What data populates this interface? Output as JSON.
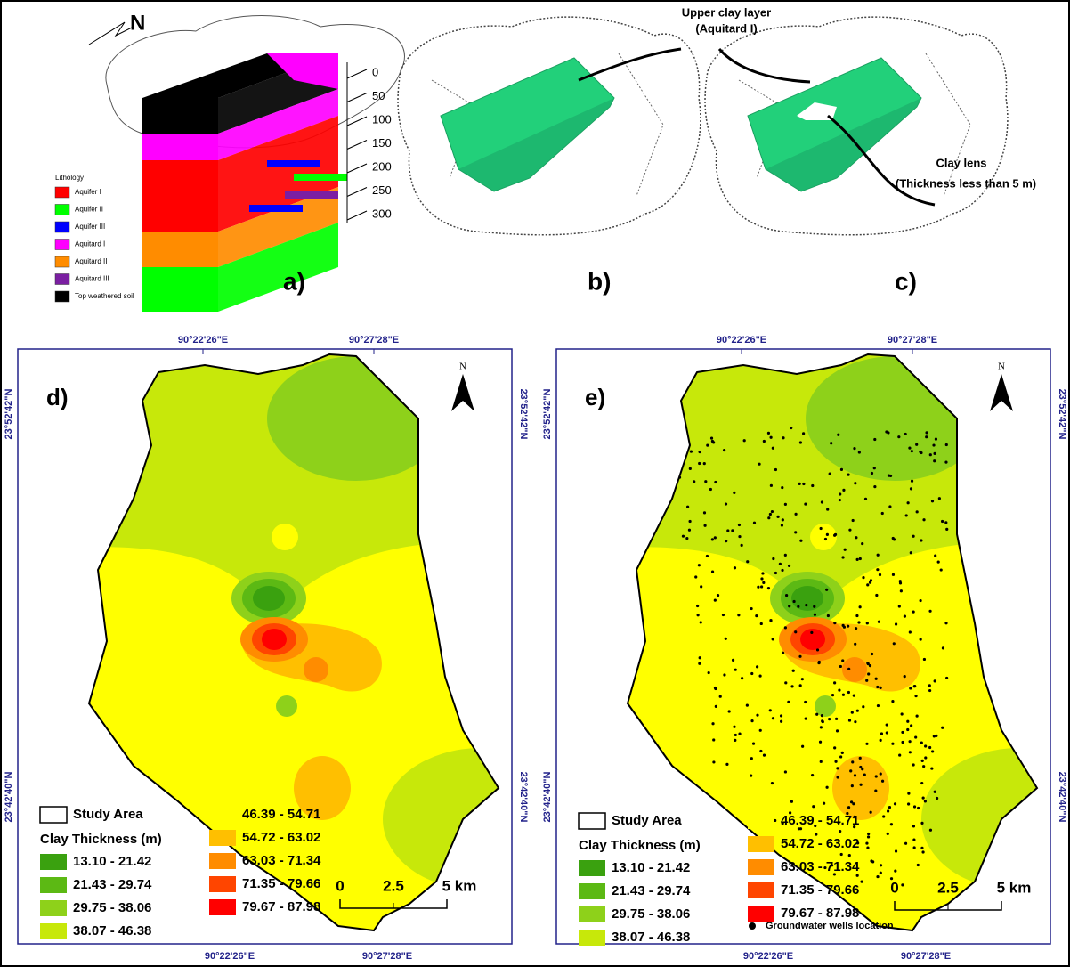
{
  "panel_a": {
    "label": "a)",
    "north": "N",
    "depth_labels": [
      0,
      50,
      100,
      150,
      200,
      250,
      300
    ],
    "legend_title": "Lithology",
    "legend": [
      {
        "name": "Aquifer I",
        "color": "#ff0000"
      },
      {
        "name": "Aquifer II",
        "color": "#00ff00"
      },
      {
        "name": "Aquifer III",
        "color": "#0000ff"
      },
      {
        "name": "Aquitard I",
        "color": "#ff00ff"
      },
      {
        "name": "Aquitard II",
        "color": "#ff8c00"
      },
      {
        "name": "Aquitard III",
        "color": "#7b1fa2"
      },
      {
        "name": "Top weathered soil",
        "color": "#000000"
      }
    ]
  },
  "panel_b": {
    "label": "b)",
    "annotation": [
      "Upper clay layer",
      "(Aquitard I)"
    ]
  },
  "panel_c": {
    "label": "c)",
    "annotation": [
      "Clay lens",
      "(Thickness less than 5 m)"
    ]
  },
  "maps": [
    {
      "label": "d)",
      "north": "N",
      "lon_labels": [
        "90°22'26\"E",
        "90°27'28\"E"
      ],
      "lat_labels": [
        "23°52'42\"N",
        "23°42'40\"N"
      ],
      "study_area": "Study Area",
      "legend_title": "Clay Thickness (m)",
      "classes": [
        {
          "range": "13.10 - 21.42",
          "color": "#3aa10f"
        },
        {
          "range": "21.43 - 29.74",
          "color": "#5cb914"
        },
        {
          "range": "29.75 - 38.06",
          "color": "#8ed11a"
        },
        {
          "range": "38.07 - 46.38",
          "color": "#c7e80a"
        },
        {
          "range": "46.39 - 54.71",
          "color": "#ffff00"
        },
        {
          "range": "54.72 - 63.02",
          "color": "#ffbf00"
        },
        {
          "range": "63.03 - 71.34",
          "color": "#ff8c00"
        },
        {
          "range": "71.35 - 79.66",
          "color": "#ff4500"
        },
        {
          "range": "79.67 - 87.98",
          "color": "#ff0000"
        }
      ],
      "scale": [
        "0",
        "2.5",
        "5 km"
      ]
    },
    {
      "label": "e)",
      "north": "N",
      "lon_labels": [
        "90°22'26\"E",
        "90°27'28\"E"
      ],
      "lat_labels": [
        "23°52'42\"N",
        "23°42'40\"N"
      ],
      "study_area": "Study Area",
      "legend_title": "Clay Thickness (m)",
      "classes": [
        {
          "range": "13.10 - 21.42",
          "color": "#3aa10f"
        },
        {
          "range": "21.43 - 29.74",
          "color": "#5cb914"
        },
        {
          "range": "29.75 - 38.06",
          "color": "#8ed11a"
        },
        {
          "range": "38.07 - 46.38",
          "color": "#c7e80a"
        },
        {
          "range": "46.39 - 54.71",
          "color": "#ffff00"
        },
        {
          "range": "54.72 - 63.02",
          "color": "#ffbf00"
        },
        {
          "range": "63.03 - 71.34",
          "color": "#ff8c00"
        },
        {
          "range": "71.35 - 79.66",
          "color": "#ff4500"
        },
        {
          "range": "79.67 - 87.98",
          "color": "#ff0000"
        }
      ],
      "scale": [
        "0",
        "2.5",
        "5 km"
      ],
      "wells_label": "Groundwater wells location"
    }
  ]
}
